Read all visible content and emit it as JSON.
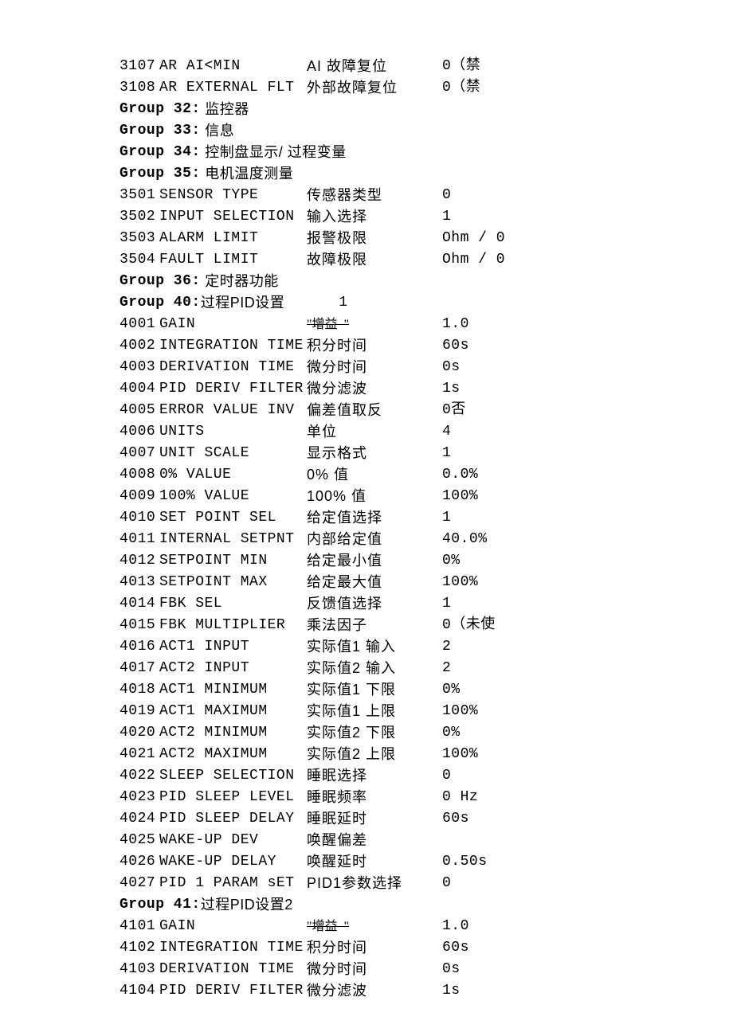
{
  "rows": [
    {
      "type": "param",
      "code": "3107",
      "name": "AR AI<MIN",
      "desc": "AI 故障复位",
      "val": "0（禁"
    },
    {
      "type": "param",
      "code": "3108",
      "name": "AR EXTERNAL FLT",
      "desc": "外部故障复位",
      "val": "0（禁"
    },
    {
      "type": "group",
      "label": "Group 32:",
      "title": " 监控器"
    },
    {
      "type": "group",
      "label": "Group 33:",
      "title": " 信息"
    },
    {
      "type": "group",
      "label": "Group 34:",
      "title": " 控制盘显示/ 过程变量"
    },
    {
      "type": "group",
      "label": "Group 35:",
      "title": " 电机温度测量"
    },
    {
      "type": "param",
      "code": "3501",
      "name": "SENSOR TYPE",
      "desc": "传感器类型",
      "val": "0"
    },
    {
      "type": "param",
      "code": "3502",
      "name": "INPUT SELECTION",
      "desc": "输入选择",
      "val": "1"
    },
    {
      "type": "param",
      "code": "3503",
      "name": "ALARM LIMIT",
      "desc": "报警极限",
      "val": "Ohm / 0"
    },
    {
      "type": "param",
      "code": "3504",
      "name": "FAULT LIMIT",
      "desc": "故障极限",
      "val": "Ohm / 0"
    },
    {
      "type": "group",
      "label": "Group 36:",
      "title": " 定时器功能"
    },
    {
      "type": "group",
      "label": "Group 40:",
      "title": "过程PID设置",
      "extra": "1"
    },
    {
      "type": "param",
      "code": "4001",
      "name": "GAIN",
      "desc_special": "\"增益  \"",
      "val": "1.0"
    },
    {
      "type": "param",
      "code": "4002",
      "name": "INTEGRATION TIME",
      "desc": "积分时间",
      "val": "60s"
    },
    {
      "type": "param",
      "code": "4003",
      "name": "DERIVATION TIME",
      "desc": "微分时间",
      "val": "0s"
    },
    {
      "type": "param",
      "code": "4004",
      "name": "PID DERIV FILTER",
      "desc": "微分滤波",
      "val": "1s"
    },
    {
      "type": "param",
      "code": "4005",
      "name": "ERROR VALUE INV",
      "desc": "偏差值取反",
      "val": "0否"
    },
    {
      "type": "param",
      "code": "4006",
      "name": "UNITS",
      "desc": "单位",
      "val": "4"
    },
    {
      "type": "param",
      "code": "4007",
      "name": "UNIT SCALE",
      "desc": "显示格式",
      "val": "1"
    },
    {
      "type": "param",
      "code": "4008",
      "name": "0% VALUE",
      "desc": "0% 值",
      "val": "0.0%"
    },
    {
      "type": "param",
      "code": "4009",
      "name": "100% VALUE",
      "desc": "100% 值",
      "val": "100%"
    },
    {
      "type": "param",
      "code": "4010",
      "name": "SET POINT SEL",
      "desc": "给定值选择",
      "val": "1"
    },
    {
      "type": "param",
      "code": "4011",
      "name": "INTERNAL SETPNT",
      "desc": "内部给定值",
      "val": "40.0%"
    },
    {
      "type": "param",
      "code": "4012",
      "name": "SETPOINT MIN",
      "desc": "给定最小值",
      "val": "0%"
    },
    {
      "type": "param",
      "code": "4013",
      "name": "SETPOINT MAX",
      "desc": "给定最大值",
      "val": "100%"
    },
    {
      "type": "param",
      "code": "4014",
      "name": "FBK SEL",
      "desc": "反馈值选择",
      "val": "1"
    },
    {
      "type": "param",
      "code": "4015",
      "name": "FBK MULTIPLIER",
      "desc": "乘法因子",
      "val": "0（未使"
    },
    {
      "type": "param",
      "code": "4016",
      "name": "ACT1 INPUT",
      "desc": "实际值1 输入",
      "val": "2"
    },
    {
      "type": "param",
      "code": "4017",
      "name": "ACT2 INPUT",
      "desc": "实际值2 输入",
      "val": "2"
    },
    {
      "type": "param",
      "code": "4018",
      "name": "ACT1 MINIMUM",
      "desc": "实际值1 下限",
      "val": "0%"
    },
    {
      "type": "param",
      "code": "4019",
      "name": "ACT1 MAXIMUM",
      "desc": "实际值1 上限",
      "val": "100%"
    },
    {
      "type": "param",
      "code": "4020",
      "name": "ACT2 MINIMUM",
      "desc": "实际值2 下限",
      "val": "0%"
    },
    {
      "type": "param",
      "code": "4021",
      "name": "ACT2 MAXIMUM",
      "desc": "实际值2 上限",
      "val": "100%"
    },
    {
      "type": "param",
      "code": "4022",
      "name": "SLEEP SELECTION",
      "desc": "睡眠选择",
      "val": "0"
    },
    {
      "type": "param",
      "code": "4023",
      "name": "PID SLEEP LEVEL",
      "desc": "睡眠频率",
      "val": "0 Hz"
    },
    {
      "type": "param",
      "code": "4024",
      "name": "PID SLEEP DELAY",
      "desc": "睡眠延时",
      "val": "60s"
    },
    {
      "type": "param",
      "code": "4025",
      "name": "WAKE-UP DEV",
      "desc": "唤醒偏差",
      "val": ""
    },
    {
      "type": "param",
      "code": "4026",
      "name": "WAKE-UP DELAY",
      "desc": "唤醒延时",
      "val": "0.50s"
    },
    {
      "type": "param",
      "code": "4027",
      "name": "PID 1 PARAM sET",
      "desc": "PID1参数选择",
      "val": "0"
    },
    {
      "type": "group",
      "label": "Group 41:",
      "title": "过程PID设置2"
    },
    {
      "type": "param",
      "code": "4101",
      "name": "GAIN",
      "desc_special": "\"增益  \"",
      "val": "1.0"
    },
    {
      "type": "param",
      "code": "4102",
      "name": "INTEGRATION TIME",
      "desc": "积分时间",
      "val": "60s"
    },
    {
      "type": "param",
      "code": "4103",
      "name": "DERIVATION TIME",
      "desc": "微分时间",
      "val": "0s"
    },
    {
      "type": "param",
      "code": "4104",
      "name": "PID DERIV FILTER",
      "desc": "微分滤波",
      "val": "1s"
    }
  ]
}
